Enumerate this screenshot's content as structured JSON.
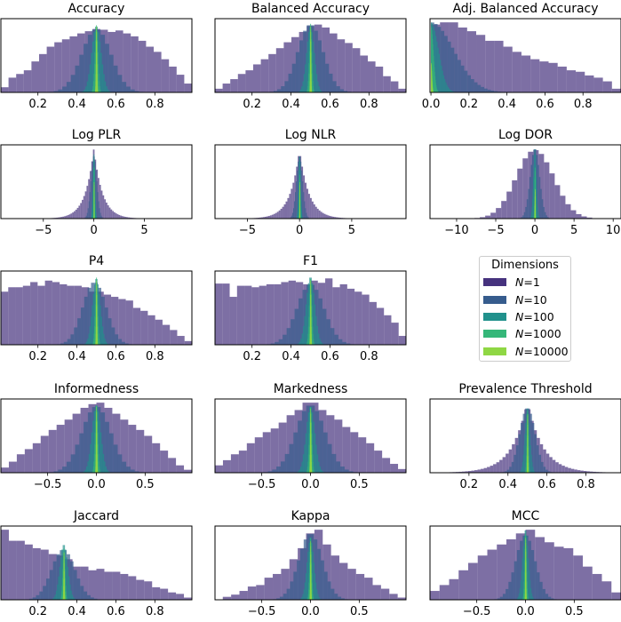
{
  "chart_data": {
    "type": "histogram-grid",
    "legend": {
      "title": "Dimensions",
      "placement": "center (row 3, column 3)",
      "entries": [
        {
          "symbol": "N",
          "text": "=1",
          "color": "#46327e"
        },
        {
          "symbol": "N",
          "text": "=10",
          "color": "#365c8d"
        },
        {
          "symbol": "N",
          "text": "=100",
          "color": "#21918c"
        },
        {
          "symbol": "N",
          "text": "=1000",
          "color": "#35b779"
        },
        {
          "symbol": "N",
          "text": "=10000",
          "color": "#8fd744"
        }
      ]
    },
    "series_opacity": 0.7,
    "panels": [
      {
        "title": "Accuracy",
        "xlim": [
          0.01,
          0.99
        ],
        "xticks": [
          0.2,
          0.4,
          0.6,
          0.8
        ],
        "xticklabels": [
          "0.2",
          "0.4",
          "0.6",
          "0.8"
        ],
        "series": [
          {
            "kind": "bins",
            "range": [
              0.01,
              0.99
            ],
            "heights": [
              0.07,
              0.2,
              0.25,
              0.3,
              0.42,
              0.52,
              0.62,
              0.68,
              0.72,
              0.76,
              0.8,
              0.83,
              0.86,
              0.85,
              0.82,
              0.84,
              0.8,
              0.76,
              0.7,
              0.62,
              0.55,
              0.45,
              0.35,
              0.24,
              0.12
            ]
          },
          {
            "kind": "normal",
            "center": 0.5,
            "sd": 0.075,
            "peak": 0.86
          },
          {
            "kind": "normal",
            "center": 0.5,
            "sd": 0.024,
            "peak": 0.9
          },
          {
            "kind": "normal",
            "center": 0.5,
            "sd": 0.008,
            "peak": 0.92
          },
          {
            "kind": "normal",
            "center": 0.5,
            "sd": 0.0025,
            "peak": 0.9
          }
        ]
      },
      {
        "title": "Balanced Accuracy",
        "xlim": [
          0.01,
          0.99
        ],
        "xticks": [
          0.2,
          0.4,
          0.6,
          0.8
        ],
        "xticklabels": [
          "0.2",
          "0.4",
          "0.6",
          "0.8"
        ],
        "series": [
          {
            "kind": "bins",
            "range": [
              0.01,
              0.99
            ],
            "heights": [
              0.05,
              0.12,
              0.18,
              0.25,
              0.3,
              0.38,
              0.45,
              0.52,
              0.6,
              0.68,
              0.75,
              0.82,
              0.9,
              0.92,
              0.88,
              0.8,
              0.72,
              0.67,
              0.6,
              0.5,
              0.42,
              0.35,
              0.22,
              0.15,
              0.05
            ]
          },
          {
            "kind": "normal",
            "center": 0.5,
            "sd": 0.065,
            "peak": 0.92
          },
          {
            "kind": "normal",
            "center": 0.5,
            "sd": 0.02,
            "peak": 0.9
          },
          {
            "kind": "normal",
            "center": 0.5,
            "sd": 0.0065,
            "peak": 0.94
          },
          {
            "kind": "normal",
            "center": 0.5,
            "sd": 0.002,
            "peak": 0.9
          }
        ]
      },
      {
        "title": "Adj. Balanced Accuracy",
        "xlim": [
          -0.005,
          1.0
        ],
        "xticks": [
          0.0,
          0.2,
          0.4,
          0.6,
          0.8
        ],
        "xticklabels": [
          "0.0",
          "0.2",
          "0.4",
          "0.6",
          "0.8"
        ],
        "series": [
          {
            "kind": "bins",
            "range": [
              0.0,
              1.0
            ],
            "heights": [
              0.92,
              0.95,
              0.95,
              0.88,
              0.83,
              0.78,
              0.7,
              0.7,
              0.62,
              0.55,
              0.5,
              0.45,
              0.42,
              0.4,
              0.35,
              0.3,
              0.28,
              0.23,
              0.2,
              0.15,
              0.05
            ]
          },
          {
            "kind": "halfnormal",
            "center": 0.0,
            "sd": 0.12,
            "peak": 0.95
          },
          {
            "kind": "halfnormal",
            "center": 0.0,
            "sd": 0.04,
            "peak": 0.95
          },
          {
            "kind": "halfnormal",
            "center": 0.0,
            "sd": 0.013,
            "peak": 0.9
          },
          {
            "kind": "halfnormal",
            "center": 0.0,
            "sd": 0.004,
            "peak": 0.4
          }
        ]
      },
      {
        "title": "Log PLR",
        "xlim": [
          -9.2,
          9.7
        ],
        "xticks": [
          -5,
          0,
          5
        ],
        "xticklabels": [
          "−5",
          "0",
          "5"
        ],
        "series": [
          {
            "kind": "laplace",
            "center": 0.0,
            "scale": 0.85,
            "peak": 0.95,
            "clip": [
              -5,
              4.5
            ]
          },
          {
            "kind": "normal",
            "center": 0.0,
            "sd": 0.3,
            "peak": 0.85
          },
          {
            "kind": "normal",
            "center": 0.0,
            "sd": 0.1,
            "peak": 0.88
          },
          {
            "kind": "normal",
            "center": 0.0,
            "sd": 0.03,
            "peak": 0.7
          },
          {
            "kind": "normal",
            "center": 0.0,
            "sd": 0.01,
            "peak": 0.5
          }
        ]
      },
      {
        "title": "Log NLR",
        "xlim": [
          -8.1,
          10.2
        ],
        "xticks": [
          -5,
          0,
          5
        ],
        "xticklabels": [
          "−5",
          "0",
          "5"
        ],
        "series": [
          {
            "kind": "laplace",
            "center": 0.0,
            "scale": 0.9,
            "peak": 0.93,
            "clip": [
              -5,
              5
            ]
          },
          {
            "kind": "normal",
            "center": 0.0,
            "sd": 0.3,
            "peak": 0.85
          },
          {
            "kind": "normal",
            "center": 0.0,
            "sd": 0.1,
            "peak": 0.85
          },
          {
            "kind": "normal",
            "center": 0.0,
            "sd": 0.03,
            "peak": 0.6
          },
          {
            "kind": "normal",
            "center": 0.0,
            "sd": 0.01,
            "peak": 0.5
          }
        ]
      },
      {
        "title": "Log DOR",
        "xlim": [
          -13.4,
          11.0
        ],
        "xticks": [
          -10,
          -5,
          0,
          5,
          10
        ],
        "xticklabels": [
          "−10",
          "−5",
          "0",
          "5",
          "10"
        ],
        "series": [
          {
            "kind": "normal",
            "center": 0.0,
            "sd": 2.4,
            "peak": 0.93,
            "clip": [
              -8.5,
              8
            ]
          },
          {
            "kind": "normal",
            "center": 0.0,
            "sd": 0.6,
            "peak": 0.95
          },
          {
            "kind": "normal",
            "center": 0.0,
            "sd": 0.2,
            "peak": 0.95
          },
          {
            "kind": "normal",
            "center": 0.0,
            "sd": 0.06,
            "peak": 0.7
          },
          {
            "kind": "normal",
            "center": 0.0,
            "sd": 0.02,
            "peak": 0.4
          }
        ]
      },
      {
        "title": "P4",
        "xlim": [
          0.01,
          0.99
        ],
        "xticks": [
          0.2,
          0.4,
          0.6,
          0.8
        ],
        "xticklabels": [
          "0.2",
          "0.4",
          "0.6",
          "0.8"
        ],
        "series": [
          {
            "kind": "bins",
            "range": [
              0.01,
              0.99
            ],
            "heights": [
              0.72,
              0.78,
              0.78,
              0.8,
              0.85,
              0.8,
              0.87,
              0.85,
              0.82,
              0.8,
              0.8,
              0.78,
              0.72,
              0.72,
              0.68,
              0.65,
              0.62,
              0.6,
              0.5,
              0.46,
              0.4,
              0.34,
              0.27,
              0.2,
              0.12,
              0.05
            ]
          },
          {
            "kind": "normal",
            "center": 0.49,
            "sd": 0.06,
            "peak": 0.85
          },
          {
            "kind": "normal",
            "center": 0.5,
            "sd": 0.02,
            "peak": 0.9
          },
          {
            "kind": "normal",
            "center": 0.5,
            "sd": 0.0065,
            "peak": 0.92
          },
          {
            "kind": "normal",
            "center": 0.5,
            "sd": 0.002,
            "peak": 0.88
          }
        ]
      },
      {
        "title": "F1",
        "xlim": [
          0.01,
          0.99
        ],
        "xticks": [
          0.2,
          0.4,
          0.6,
          0.8
        ],
        "xticklabels": [
          "0.2",
          "0.4",
          "0.6",
          "0.8"
        ],
        "series": [
          {
            "kind": "bins",
            "range": [
              0.01,
              0.99
            ],
            "heights": [
              0.83,
              0.83,
              0.65,
              0.8,
              0.8,
              0.78,
              0.8,
              0.82,
              0.82,
              0.85,
              0.87,
              0.85,
              0.82,
              0.87,
              0.84,
              0.9,
              0.78,
              0.82,
              0.76,
              0.72,
              0.68,
              0.58,
              0.5,
              0.4,
              0.3,
              0.12
            ]
          },
          {
            "kind": "normal",
            "center": 0.5,
            "sd": 0.07,
            "peak": 0.82
          },
          {
            "kind": "normal",
            "center": 0.5,
            "sd": 0.022,
            "peak": 0.92
          },
          {
            "kind": "normal",
            "center": 0.5,
            "sd": 0.007,
            "peak": 0.9
          },
          {
            "kind": "normal",
            "center": 0.5,
            "sd": 0.002,
            "peak": 0.88
          }
        ]
      },
      {
        "title": "Informedness",
        "xlim": [
          -0.98,
          0.98
        ],
        "xticks": [
          -0.5,
          0.0,
          0.5
        ],
        "xticklabels": [
          "−0.5",
          "0.0",
          "0.5"
        ],
        "series": [
          {
            "kind": "bins",
            "range": [
              -0.98,
              0.98
            ],
            "heights": [
              0.07,
              0.15,
              0.25,
              0.32,
              0.4,
              0.5,
              0.58,
              0.65,
              0.72,
              0.8,
              0.88,
              0.93,
              0.95,
              0.88,
              0.8,
              0.72,
              0.65,
              0.58,
              0.5,
              0.4,
              0.3,
              0.2,
              0.1,
              0.04
            ]
          },
          {
            "kind": "normal",
            "center": 0.0,
            "sd": 0.15,
            "peak": 0.9
          },
          {
            "kind": "normal",
            "center": 0.0,
            "sd": 0.045,
            "peak": 0.92
          },
          {
            "kind": "normal",
            "center": 0.0,
            "sd": 0.014,
            "peak": 0.92
          },
          {
            "kind": "normal",
            "center": 0.0,
            "sd": 0.0045,
            "peak": 0.9
          }
        ]
      },
      {
        "title": "Markedness",
        "xlim": [
          -0.98,
          0.98
        ],
        "xticks": [
          -0.5,
          0.0,
          0.5
        ],
        "xticklabels": [
          "−0.5",
          "0.0",
          "0.5"
        ],
        "series": [
          {
            "kind": "bins",
            "range": [
              -0.98,
              0.98
            ],
            "heights": [
              0.1,
              0.17,
              0.25,
              0.3,
              0.4,
              0.48,
              0.55,
              0.6,
              0.68,
              0.78,
              0.85,
              0.95,
              0.95,
              0.85,
              0.78,
              0.72,
              0.62,
              0.55,
              0.48,
              0.4,
              0.3,
              0.2,
              0.12,
              0.05
            ]
          },
          {
            "kind": "normal",
            "center": 0.0,
            "sd": 0.15,
            "peak": 0.92
          },
          {
            "kind": "normal",
            "center": 0.0,
            "sd": 0.045,
            "peak": 0.9
          },
          {
            "kind": "normal",
            "center": 0.0,
            "sd": 0.014,
            "peak": 0.9
          },
          {
            "kind": "normal",
            "center": 0.0,
            "sd": 0.0045,
            "peak": 0.88
          }
        ]
      },
      {
        "title": "Prevalence Threshold",
        "xlim": [
          0.0,
          0.98
        ],
        "xticks": [
          0.2,
          0.4,
          0.6,
          0.8
        ],
        "xticklabels": [
          "0.2",
          "0.4",
          "0.6",
          "0.8"
        ],
        "series": [
          {
            "kind": "laplace",
            "center": 0.5,
            "scale": 0.08,
            "peak": 0.95,
            "clip": [
              0.02,
              0.98
            ]
          },
          {
            "kind": "normal",
            "center": 0.5,
            "sd": 0.04,
            "peak": 0.88
          },
          {
            "kind": "normal",
            "center": 0.5,
            "sd": 0.013,
            "peak": 0.88
          },
          {
            "kind": "normal",
            "center": 0.5,
            "sd": 0.004,
            "peak": 0.85
          },
          {
            "kind": "normal",
            "center": 0.5,
            "sd": 0.0013,
            "peak": 0.8
          }
        ]
      },
      {
        "title": "Jaccard",
        "xlim": [
          0.01,
          0.99
        ],
        "xticks": [
          0.2,
          0.4,
          0.6,
          0.8
        ],
        "xticklabels": [
          "0.2",
          "0.4",
          "0.6",
          "0.8"
        ],
        "series": [
          {
            "kind": "bins",
            "range": [
              0.01,
              0.99
            ],
            "heights": [
              0.95,
              0.8,
              0.8,
              0.75,
              0.7,
              0.68,
              0.62,
              0.6,
              0.55,
              0.45,
              0.45,
              0.4,
              0.42,
              0.38,
              0.38,
              0.35,
              0.32,
              0.27,
              0.25,
              0.17,
              0.15,
              0.1,
              0.08,
              0.03
            ]
          },
          {
            "kind": "normal",
            "center": 0.33,
            "sd": 0.06,
            "peak": 0.68
          },
          {
            "kind": "normal",
            "center": 0.333,
            "sd": 0.02,
            "peak": 0.75
          },
          {
            "kind": "normal",
            "center": 0.333,
            "sd": 0.006,
            "peak": 0.7
          },
          {
            "kind": "normal",
            "center": 0.333,
            "sd": 0.002,
            "peak": 0.65
          }
        ]
      },
      {
        "title": "Kappa",
        "xlim": [
          -0.98,
          0.98
        ],
        "xticks": [
          -0.5,
          0.0,
          0.5
        ],
        "xticklabels": [
          "−0.5",
          "0.0",
          "0.5"
        ],
        "series": [
          {
            "kind": "bins",
            "range": [
              -0.9,
              0.98
            ],
            "heights": [
              0.04,
              0.07,
              0.12,
              0.18,
              0.2,
              0.3,
              0.35,
              0.42,
              0.55,
              0.7,
              0.9,
              0.95,
              0.75,
              0.6,
              0.5,
              0.42,
              0.35,
              0.3,
              0.2,
              0.15,
              0.08,
              0.03
            ]
          },
          {
            "kind": "normal",
            "center": 0.0,
            "sd": 0.12,
            "peak": 0.9
          },
          {
            "kind": "normal",
            "center": 0.0,
            "sd": 0.035,
            "peak": 0.85
          },
          {
            "kind": "normal",
            "center": 0.0,
            "sd": 0.011,
            "peak": 0.85
          },
          {
            "kind": "normal",
            "center": 0.0,
            "sd": 0.0035,
            "peak": 0.8
          }
        ]
      },
      {
        "title": "MCC",
        "xlim": [
          -0.98,
          0.98
        ],
        "xticks": [
          -0.5,
          0.0,
          0.5
        ],
        "xticklabels": [
          "−0.5",
          "0.0",
          "0.5"
        ],
        "series": [
          {
            "kind": "bins",
            "range": [
              -0.98,
              0.98
            ],
            "heights": [
              0.12,
              0.2,
              0.28,
              0.4,
              0.5,
              0.6,
              0.68,
              0.75,
              0.82,
              0.9,
              0.95,
              0.85,
              0.78,
              0.72,
              0.7,
              0.6,
              0.45,
              0.35,
              0.25,
              0.1
            ]
          },
          {
            "kind": "normal",
            "center": 0.0,
            "sd": 0.1,
            "peak": 0.88
          },
          {
            "kind": "normal",
            "center": 0.0,
            "sd": 0.03,
            "peak": 0.95
          },
          {
            "kind": "normal",
            "center": 0.0,
            "sd": 0.01,
            "peak": 0.9
          },
          {
            "kind": "normal",
            "center": 0.0,
            "sd": 0.003,
            "peak": 0.85
          }
        ]
      }
    ]
  }
}
